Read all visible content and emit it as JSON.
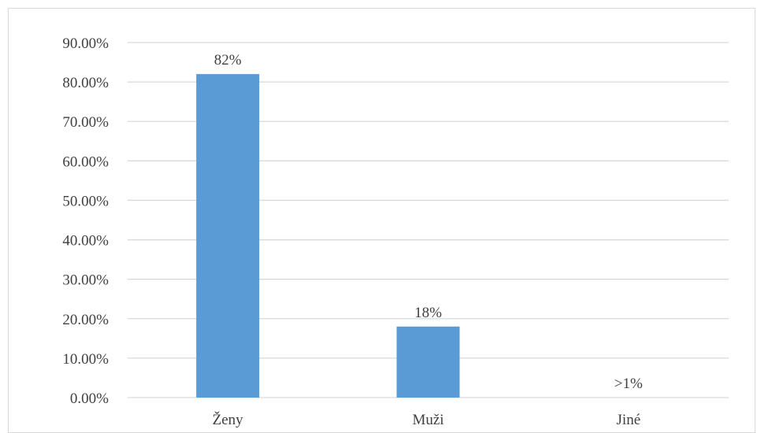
{
  "chart_data": {
    "type": "bar",
    "categories": [
      "Ženy",
      "Muži",
      "Jiné"
    ],
    "values": [
      0.82,
      0.18,
      0
    ],
    "data_labels": [
      "82%",
      "18%",
      ">1%"
    ],
    "y_ticks": [
      "0.00%",
      "10.00%",
      "20.00%",
      "30.00%",
      "40.00%",
      "50.00%",
      "60.00%",
      "70.00%",
      "80.00%",
      "90.00%"
    ],
    "ylim": [
      0,
      0.9
    ],
    "grid": true,
    "bar_color": "#5b9bd5",
    "grid_color": "#d9d9d9",
    "title": "",
    "xlabel": "",
    "ylabel": ""
  }
}
